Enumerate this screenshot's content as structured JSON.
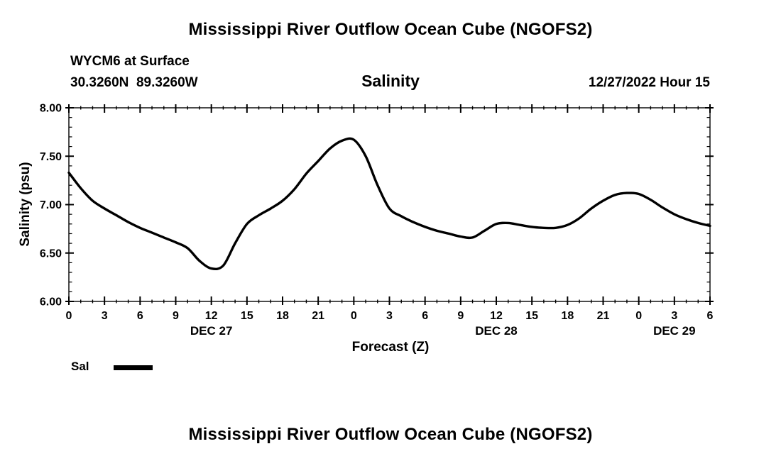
{
  "header": {
    "title": "Mississippi River Outflow Ocean Cube (NGOFS2)",
    "station": "WYCM6 at Surface",
    "coords": "30.3260N  89.3260W",
    "variable": "Salinity",
    "datetime": "12/27/2022 Hour 15"
  },
  "axes": {
    "y_label": "Salinity (psu)",
    "x_label": "Forecast (Z)"
  },
  "legend": {
    "label": "Sal"
  },
  "footer": {
    "title": "Mississippi River Outflow Ocean Cube (NGOFS2)"
  },
  "chart_data": {
    "type": "line",
    "title": "Salinity",
    "xlabel": "Forecast (Z)",
    "ylabel": "Salinity (psu)",
    "xlim": [
      0,
      54
    ],
    "ylim": [
      6.0,
      8.0
    ],
    "grid": false,
    "line_color": "#000000",
    "x_minor_step": 1,
    "y_minor_step": 0.1,
    "x_ticks": [
      {
        "h": 0,
        "label": "0"
      },
      {
        "h": 3,
        "label": "3"
      },
      {
        "h": 6,
        "label": "6"
      },
      {
        "h": 9,
        "label": "9"
      },
      {
        "h": 12,
        "label": "12"
      },
      {
        "h": 15,
        "label": "15"
      },
      {
        "h": 18,
        "label": "18"
      },
      {
        "h": 21,
        "label": "21"
      },
      {
        "h": 24,
        "label": "0"
      },
      {
        "h": 27,
        "label": "3"
      },
      {
        "h": 30,
        "label": "6"
      },
      {
        "h": 33,
        "label": "9"
      },
      {
        "h": 36,
        "label": "12"
      },
      {
        "h": 39,
        "label": "15"
      },
      {
        "h": 42,
        "label": "18"
      },
      {
        "h": 45,
        "label": "21"
      },
      {
        "h": 48,
        "label": "0"
      },
      {
        "h": 51,
        "label": "3"
      },
      {
        "h": 54,
        "label": "6"
      }
    ],
    "y_ticks": [
      {
        "v": 6.0,
        "label": "6.00"
      },
      {
        "v": 6.5,
        "label": "6.50"
      },
      {
        "v": 7.0,
        "label": "7.00"
      },
      {
        "v": 7.5,
        "label": "7.50"
      },
      {
        "v": 8.0,
        "label": "8.00"
      }
    ],
    "date_labels": [
      {
        "h": 12,
        "label": "DEC 27"
      },
      {
        "h": 36,
        "label": "DEC 28"
      },
      {
        "h": 51,
        "label": "DEC 29"
      }
    ],
    "series": [
      {
        "name": "Sal",
        "x_start": 0,
        "x_step": 1,
        "values": [
          7.33,
          7.17,
          7.04,
          6.96,
          6.89,
          6.82,
          6.76,
          6.71,
          6.66,
          6.61,
          6.55,
          6.42,
          6.34,
          6.37,
          6.6,
          6.8,
          6.89,
          6.96,
          7.04,
          7.16,
          7.32,
          7.45,
          7.58,
          7.66,
          7.67,
          7.5,
          7.2,
          6.96,
          6.88,
          6.82,
          6.77,
          6.73,
          6.7,
          6.67,
          6.66,
          6.73,
          6.8,
          6.81,
          6.79,
          6.77,
          6.76,
          6.76,
          6.79,
          6.86,
          6.96,
          7.04,
          7.1,
          7.12,
          7.11,
          7.05,
          6.97,
          6.9,
          6.85,
          6.81,
          6.78
        ]
      }
    ]
  }
}
